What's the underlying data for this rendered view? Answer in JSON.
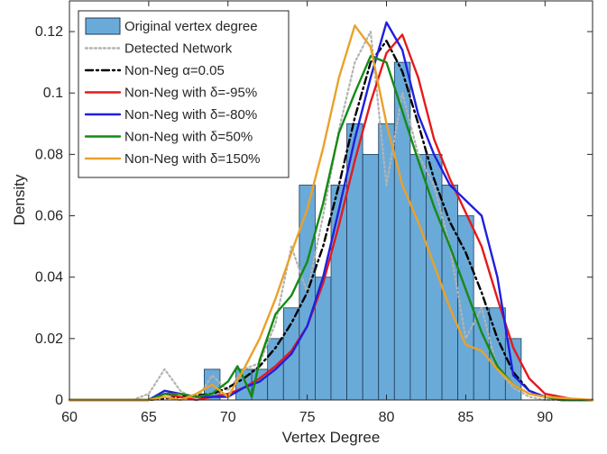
{
  "chart_data": {
    "type": "bar",
    "xlabel": "Vertex Degree",
    "ylabel": "Density",
    "xlim": [
      60,
      93
    ],
    "ylim": [
      0,
      0.13
    ],
    "xticks": [
      60,
      65,
      70,
      75,
      80,
      85,
      90
    ],
    "yticks": [
      0,
      0.02,
      0.04,
      0.06,
      0.08,
      0.1,
      0.12
    ],
    "xtick_labels": [
      "60",
      "65",
      "70",
      "75",
      "80",
      "85",
      "90"
    ],
    "ytick_labels": [
      "0",
      "0.02",
      "0.04",
      "0.06",
      "0.08",
      "0.1",
      "0.12"
    ],
    "grid": false,
    "legend_position": "top-left",
    "legend": [
      {
        "label": "Original vertex degree",
        "kind": "patch",
        "color": "#6aaad8",
        "edge": "#1f3b5a"
      },
      {
        "label": "Detected Network",
        "kind": "dotted",
        "color": "#b3b3b3"
      },
      {
        "label": "Non-Neg α=0.05",
        "kind": "dashdot",
        "color": "#000000"
      },
      {
        "label": "Non-Neg with δ=-95%",
        "kind": "solid",
        "color": "#e41a1c"
      },
      {
        "label": "Non-Neg with δ=-80%",
        "kind": "solid",
        "color": "#1f1fe0"
      },
      {
        "label": "Non-Neg with δ=50%",
        "kind": "solid",
        "color": "#158a15"
      },
      {
        "label": "Non-Neg with δ=150%",
        "kind": "solid",
        "color": "#eaa12a"
      }
    ],
    "histogram": {
      "name": "Original vertex degree",
      "color": "#6aaad8",
      "edge": "#1f3b5a",
      "bins": [
        {
          "x0": 68.5,
          "x1": 69.5,
          "value": 0.01
        },
        {
          "x0": 70.5,
          "x1": 71.5,
          "value": 0.01
        },
        {
          "x0": 71.5,
          "x1": 72.5,
          "value": 0.01
        },
        {
          "x0": 72.5,
          "x1": 73.5,
          "value": 0.02
        },
        {
          "x0": 73.5,
          "x1": 74.5,
          "value": 0.03
        },
        {
          "x0": 74.5,
          "x1": 75.5,
          "value": 0.07
        },
        {
          "x0": 75.5,
          "x1": 76.5,
          "value": 0.04
        },
        {
          "x0": 76.5,
          "x1": 77.5,
          "value": 0.07
        },
        {
          "x0": 77.5,
          "x1": 78.5,
          "value": 0.09
        },
        {
          "x0": 78.5,
          "x1": 79.5,
          "value": 0.08
        },
        {
          "x0": 79.5,
          "x1": 80.5,
          "value": 0.09
        },
        {
          "x0": 80.5,
          "x1": 81.5,
          "value": 0.11
        },
        {
          "x0": 81.5,
          "x1": 82.5,
          "value": 0.08
        },
        {
          "x0": 82.5,
          "x1": 83.5,
          "value": 0.08
        },
        {
          "x0": 83.5,
          "x1": 84.5,
          "value": 0.07
        },
        {
          "x0": 84.5,
          "x1": 85.5,
          "value": 0.06
        },
        {
          "x0": 85.5,
          "x1": 86.5,
          "value": 0.03
        },
        {
          "x0": 86.5,
          "x1": 87.5,
          "value": 0.03
        },
        {
          "x0": 87.5,
          "x1": 88.5,
          "value": 0.02
        }
      ]
    },
    "series": [
      {
        "name": "Detected Network",
        "color": "#b3b3b3",
        "dash": "dotted",
        "x": [
          60,
          64,
          65,
          66,
          67,
          68,
          69,
          70,
          71,
          72,
          73,
          74,
          75,
          76,
          77,
          78,
          79,
          80,
          81,
          82,
          83,
          84,
          85,
          86,
          87,
          88,
          89,
          90,
          92
        ],
        "y": [
          0,
          0,
          0.002,
          0.01,
          0.003,
          0,
          0.008,
          0.003,
          0.01,
          0.012,
          0.025,
          0.05,
          0.035,
          0.06,
          0.088,
          0.11,
          0.12,
          0.07,
          0.1,
          0.08,
          0.07,
          0.05,
          0.02,
          0.03,
          0.01,
          0.004,
          0.001,
          0,
          0
        ]
      },
      {
        "name": "Non-Neg α=0.05",
        "color": "#000000",
        "dash": "dashdot",
        "x": [
          60,
          65,
          67,
          69,
          70,
          71,
          72,
          73,
          74,
          75,
          76,
          77,
          78,
          79,
          80,
          81,
          82,
          83,
          84,
          85,
          86,
          87,
          88,
          89,
          90,
          91,
          92,
          93
        ],
        "y": [
          0,
          0,
          0.001,
          0.002,
          0.004,
          0.007,
          0.011,
          0.017,
          0.025,
          0.035,
          0.05,
          0.07,
          0.092,
          0.11,
          0.117,
          0.107,
          0.09,
          0.072,
          0.058,
          0.048,
          0.035,
          0.02,
          0.009,
          0.003,
          0.001,
          0,
          0,
          0
        ]
      },
      {
        "name": "Non-Neg with δ=-95%",
        "color": "#e41a1c",
        "dash": "solid",
        "x": [
          60,
          65,
          66,
          67,
          68,
          69,
          70,
          71,
          72,
          73,
          74,
          75,
          76,
          77,
          78,
          79,
          80,
          81,
          82,
          83,
          84,
          85,
          86,
          87,
          88,
          89,
          90,
          91,
          92,
          93
        ],
        "y": [
          0,
          0,
          0.002,
          0.001,
          0,
          0.001,
          0.002,
          0.004,
          0.007,
          0.011,
          0.016,
          0.024,
          0.038,
          0.057,
          0.078,
          0.097,
          0.113,
          0.119,
          0.105,
          0.085,
          0.072,
          0.061,
          0.05,
          0.033,
          0.017,
          0.007,
          0.002,
          0.001,
          0,
          0
        ]
      },
      {
        "name": "Non-Neg with δ=-80%",
        "color": "#1f1fe0",
        "dash": "solid",
        "x": [
          60,
          65,
          66,
          67,
          68,
          69,
          70,
          71,
          72,
          73,
          74,
          75,
          76,
          77,
          78,
          79,
          80,
          81,
          82,
          83,
          84,
          85,
          86,
          87,
          88,
          89,
          90,
          91,
          92,
          93
        ],
        "y": [
          0,
          0,
          0.003,
          0.002,
          0.001,
          0.001,
          0.001,
          0.004,
          0.006,
          0.01,
          0.015,
          0.024,
          0.04,
          0.062,
          0.085,
          0.105,
          0.123,
          0.114,
          0.093,
          0.08,
          0.07,
          0.065,
          0.06,
          0.04,
          0.008,
          0.003,
          0.001,
          0,
          0,
          0
        ]
      },
      {
        "name": "Non-Neg with δ=50%",
        "color": "#158a15",
        "dash": "solid",
        "x": [
          60,
          65,
          66,
          67,
          68,
          69,
          70,
          70.6,
          71,
          71.5,
          72,
          73,
          74,
          75,
          76,
          77,
          78,
          79,
          80,
          81,
          82,
          83,
          84,
          85,
          86,
          87,
          88,
          89,
          90,
          91,
          93
        ],
        "y": [
          0,
          0,
          0.002,
          0.002,
          0.001,
          0.002,
          0.006,
          0.011,
          0.007,
          0.001,
          0.013,
          0.028,
          0.034,
          0.045,
          0.064,
          0.087,
          0.1,
          0.112,
          0.11,
          0.094,
          0.078,
          0.063,
          0.05,
          0.036,
          0.022,
          0.011,
          0.005,
          0.002,
          0.001,
          0,
          0
        ]
      },
      {
        "name": "Non-Neg with δ=150%",
        "color": "#eaa12a",
        "dash": "solid",
        "x": [
          60,
          65,
          66,
          67,
          68,
          69,
          70,
          71,
          72,
          73,
          74,
          75,
          76,
          77,
          78,
          79,
          80,
          81,
          82,
          83,
          84,
          85,
          86,
          87,
          88,
          89,
          90,
          93
        ],
        "y": [
          0,
          0,
          0.001,
          0,
          0.002,
          0.005,
          0.001,
          0.01,
          0.02,
          0.033,
          0.048,
          0.062,
          0.082,
          0.105,
          0.122,
          0.115,
          0.09,
          0.07,
          0.058,
          0.044,
          0.03,
          0.018,
          0.016,
          0.01,
          0.005,
          0.002,
          0.001,
          0
        ]
      }
    ]
  }
}
